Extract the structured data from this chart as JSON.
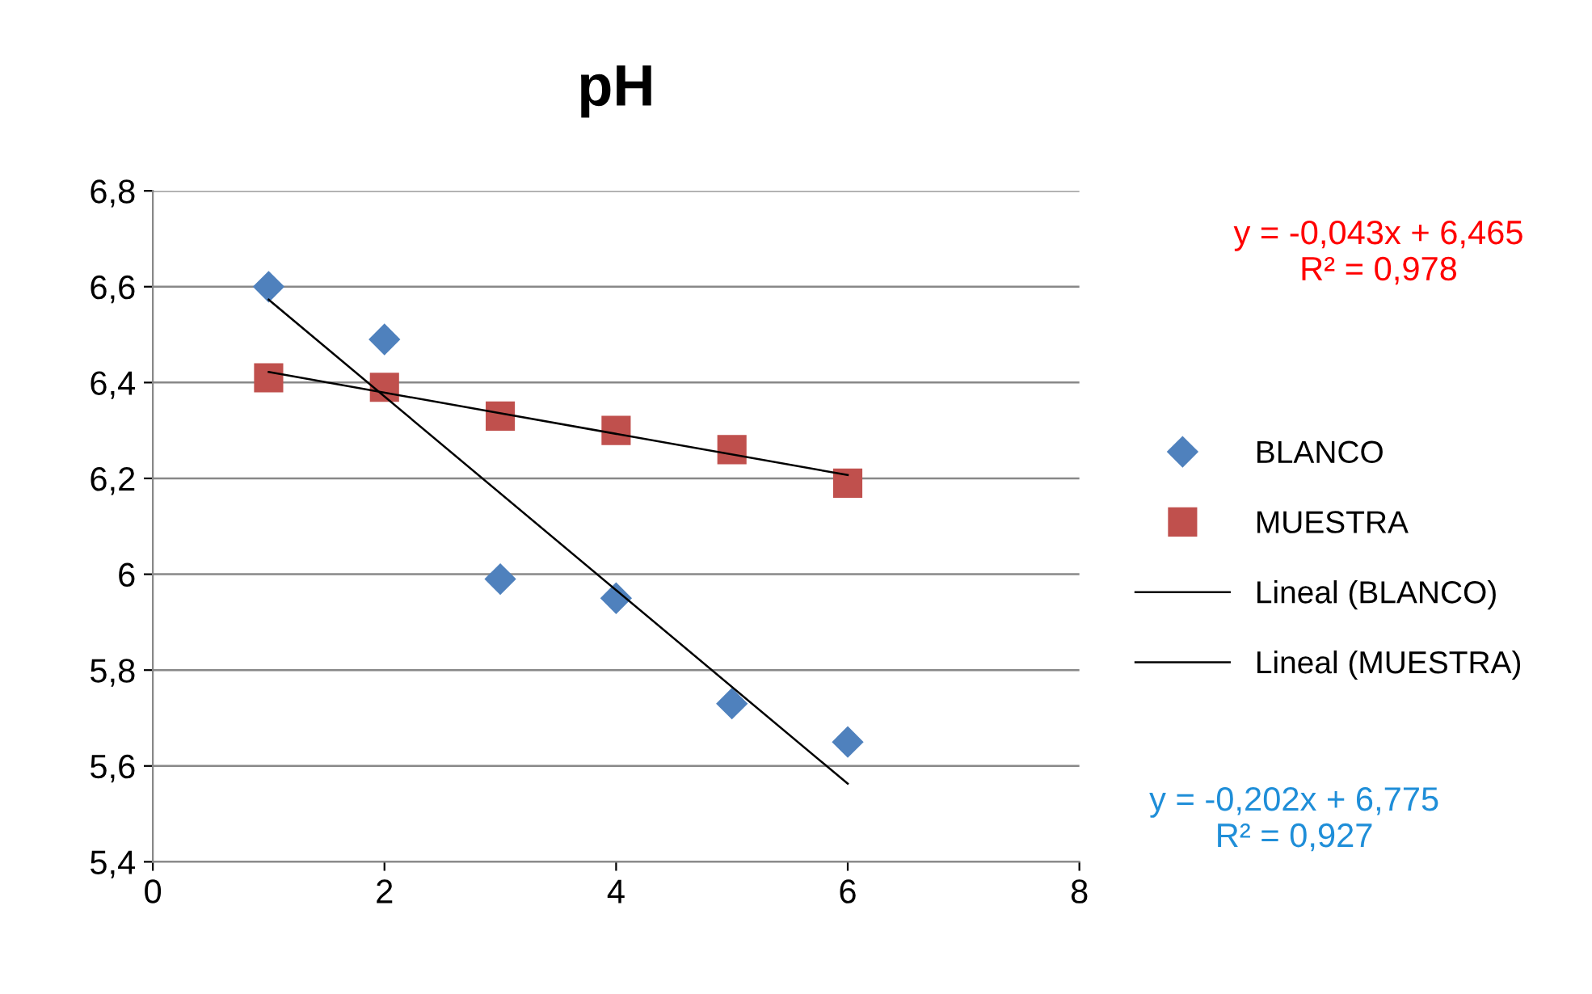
{
  "chart_data": {
    "type": "scatter",
    "title": "pH",
    "series": [
      {
        "name": "BLANCO",
        "marker": "diamond",
        "color": "#4f81bd",
        "x": [
          1,
          2,
          3,
          4,
          5,
          6
        ],
        "values": [
          6.6,
          6.49,
          5.99,
          5.95,
          5.73,
          5.65
        ]
      },
      {
        "name": "MUESTRA",
        "marker": "square",
        "color": "#c0504d",
        "x": [
          1,
          2,
          3,
          4,
          5,
          6
        ],
        "values": [
          6.41,
          6.39,
          6.33,
          6.3,
          6.26,
          6.19
        ]
      },
      {
        "name": "Lineal (BLANCO)",
        "type": "line",
        "marker": "none",
        "line_style": "solid",
        "color": "#000000",
        "x": [
          1,
          6
        ],
        "values": [
          6.573,
          5.563
        ]
      },
      {
        "name": "Lineal (MUESTRA)",
        "type": "line",
        "marker": "none",
        "line_style": "solid",
        "color": "#000000",
        "x": [
          1,
          6
        ],
        "values": [
          6.422,
          6.207
        ]
      }
    ],
    "xlim": [
      0,
      8
    ],
    "xticks": [
      0,
      2,
      4,
      6,
      8
    ],
    "ylim": [
      5.4,
      6.8
    ],
    "yticks": [
      {
        "value": 5.4,
        "label": "5,4"
      },
      {
        "value": 5.6,
        "label": "5,6"
      },
      {
        "value": 5.8,
        "label": "5,8"
      },
      {
        "value": 6,
        "label": "6"
      },
      {
        "value": 6.2,
        "label": "6,2"
      },
      {
        "value": 6.4,
        "label": "6,4"
      },
      {
        "value": 6.6,
        "label": "6,6"
      },
      {
        "value": 6.8,
        "label": "6,8"
      }
    ],
    "grid": "y",
    "legend": "right",
    "annotations": [
      "y = -0,043x + 6,465\nR² = 0,978",
      "y = -0,202x + 6,775\nR² = 0,927"
    ]
  }
}
